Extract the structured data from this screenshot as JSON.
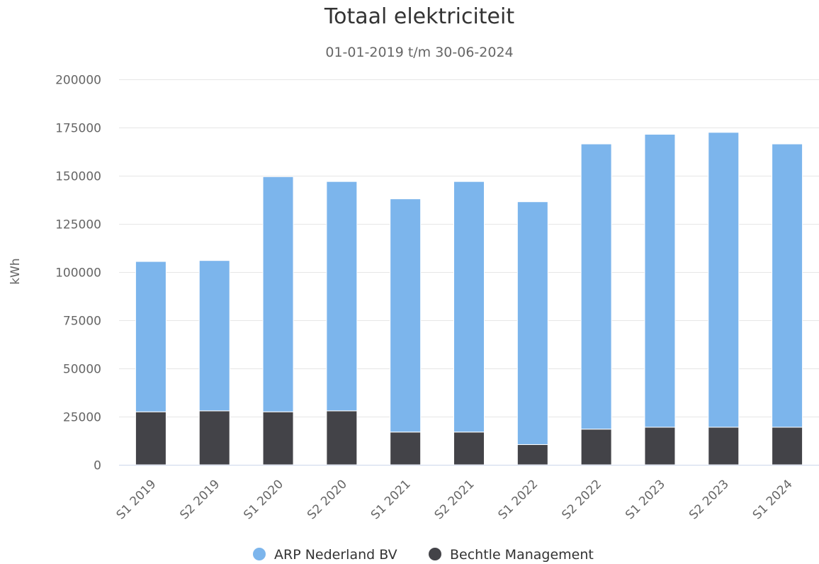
{
  "chart_data": {
    "type": "bar",
    "stacked": true,
    "title": "Totaal elektriciteit",
    "subtitle": "01-01-2019 t/m 30-06-2024",
    "ylabel": "kWh",
    "xlabel": "",
    "ylim": [
      0,
      200000
    ],
    "yticks": [
      "0",
      "25000",
      "50000",
      "75000",
      "100000",
      "125000",
      "150000",
      "175000",
      "200000"
    ],
    "grid": true,
    "legend_position": "bottom-center",
    "categories": [
      "S1 2019",
      "S2 2019",
      "S1 2020",
      "S2 2020",
      "S1 2021",
      "S2 2021",
      "S1 2022",
      "S2 2022",
      "S1 2023",
      "S2 2023",
      "S1 2024"
    ],
    "series": [
      {
        "name": "ARP Nederland BV",
        "color": "#7cb5ec",
        "values": [
          78000,
          78000,
          122000,
          119000,
          121000,
          130000,
          126000,
          148000,
          152000,
          153000,
          147000
        ]
      },
      {
        "name": "Bechtle Management",
        "color": "#434348",
        "values": [
          27500,
          28000,
          27500,
          28000,
          17000,
          17000,
          10500,
          18500,
          19500,
          19500,
          19500
        ]
      }
    ]
  }
}
